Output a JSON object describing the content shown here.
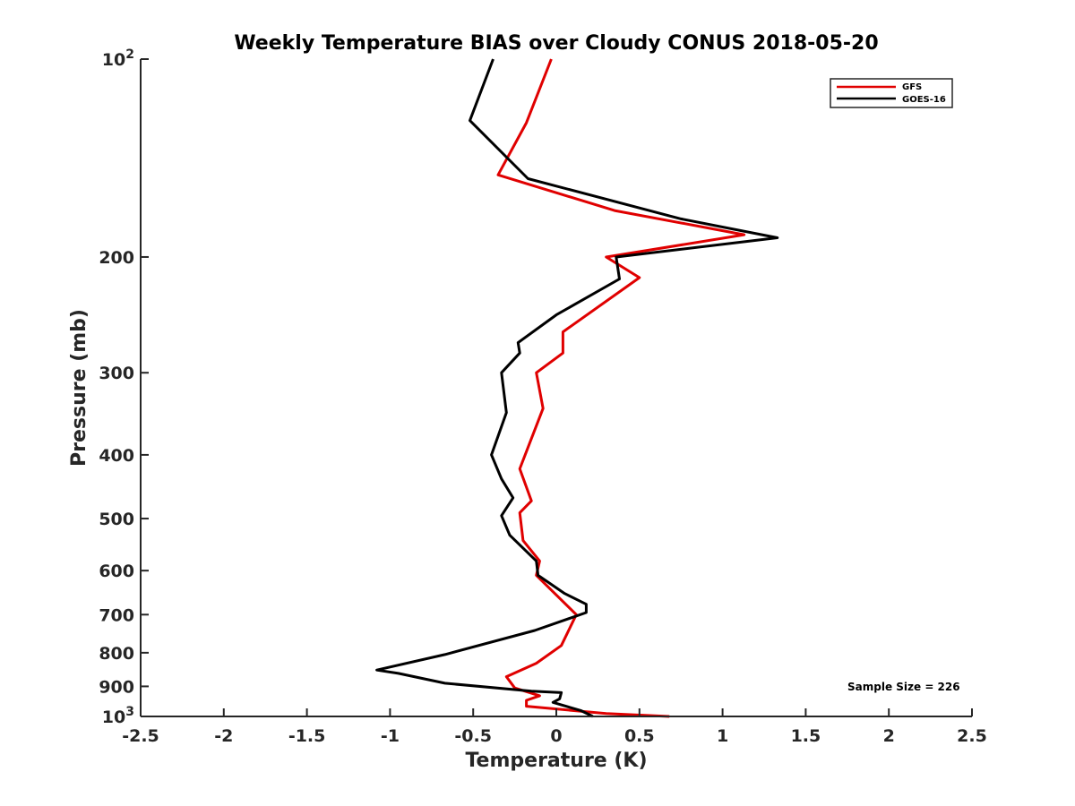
{
  "chart_data": {
    "type": "line",
    "title": "Weekly Temperature BIAS over Cloudy CONUS 2018-05-20",
    "xlabel": "Temperature (K)",
    "ylabel": "Pressure (mb)",
    "xlim": [
      -2.5,
      2.5
    ],
    "ylim": [
      100,
      1000
    ],
    "y_scale": "log",
    "y_reversed": true,
    "x_ticks": [
      -2.5,
      -2,
      -1.5,
      -1,
      -0.5,
      0,
      0.5,
      1,
      1.5,
      2,
      2.5
    ],
    "x_tick_labels": [
      "-2.5",
      "-2",
      "-1.5",
      "-1",
      "-0.5",
      "0",
      "0.5",
      "1",
      "1.5",
      "2",
      "2.5"
    ],
    "y_ticks": [
      100,
      200,
      300,
      400,
      500,
      600,
      700,
      800,
      900,
      1000
    ],
    "y_tick_labels": [
      {
        "base": "10",
        "exp": "2"
      },
      {
        "base": "200",
        "exp": ""
      },
      {
        "base": "300",
        "exp": ""
      },
      {
        "base": "400",
        "exp": ""
      },
      {
        "base": "500",
        "exp": ""
      },
      {
        "base": "600",
        "exp": ""
      },
      {
        "base": "700",
        "exp": ""
      },
      {
        "base": "800",
        "exp": ""
      },
      {
        "base": "900",
        "exp": ""
      },
      {
        "base": "10",
        "exp": "3"
      }
    ],
    "grid": false,
    "legend_position": "top-right",
    "annotation": "Sample Size = 226",
    "series": [
      {
        "name": "GFS",
        "color": "#e00000",
        "points": [
          {
            "x": -0.03,
            "p": 100
          },
          {
            "x": -0.18,
            "p": 125
          },
          {
            "x": -0.35,
            "p": 150
          },
          {
            "x": 0.35,
            "p": 170
          },
          {
            "x": 1.13,
            "p": 185
          },
          {
            "x": 0.3,
            "p": 200
          },
          {
            "x": 0.5,
            "p": 215
          },
          {
            "x": 0.04,
            "p": 260
          },
          {
            "x": 0.04,
            "p": 280
          },
          {
            "x": -0.12,
            "p": 300
          },
          {
            "x": -0.08,
            "p": 340
          },
          {
            "x": -0.22,
            "p": 420
          },
          {
            "x": -0.15,
            "p": 470
          },
          {
            "x": -0.22,
            "p": 490
          },
          {
            "x": -0.2,
            "p": 540
          },
          {
            "x": -0.1,
            "p": 580
          },
          {
            "x": -0.12,
            "p": 610
          },
          {
            "x": 0.12,
            "p": 700
          },
          {
            "x": 0.03,
            "p": 780
          },
          {
            "x": -0.12,
            "p": 830
          },
          {
            "x": -0.3,
            "p": 870
          },
          {
            "x": -0.25,
            "p": 905
          },
          {
            "x": -0.1,
            "p": 930
          },
          {
            "x": -0.18,
            "p": 945
          },
          {
            "x": -0.18,
            "p": 965
          },
          {
            "x": 0.3,
            "p": 990
          },
          {
            "x": 0.68,
            "p": 1000
          }
        ]
      },
      {
        "name": "GOES-16",
        "color": "#000000",
        "points": [
          {
            "x": -0.38,
            "p": 100
          },
          {
            "x": -0.52,
            "p": 124
          },
          {
            "x": -0.17,
            "p": 152
          },
          {
            "x": 0.75,
            "p": 175
          },
          {
            "x": 1.33,
            "p": 187
          },
          {
            "x": 0.36,
            "p": 200
          },
          {
            "x": 0.38,
            "p": 216
          },
          {
            "x": 0.0,
            "p": 245
          },
          {
            "x": -0.23,
            "p": 270
          },
          {
            "x": -0.22,
            "p": 280
          },
          {
            "x": -0.33,
            "p": 300
          },
          {
            "x": -0.3,
            "p": 345
          },
          {
            "x": -0.39,
            "p": 400
          },
          {
            "x": -0.33,
            "p": 435
          },
          {
            "x": -0.26,
            "p": 465
          },
          {
            "x": -0.33,
            "p": 495
          },
          {
            "x": -0.28,
            "p": 530
          },
          {
            "x": -0.12,
            "p": 580
          },
          {
            "x": -0.11,
            "p": 610
          },
          {
            "x": 0.05,
            "p": 650
          },
          {
            "x": 0.18,
            "p": 675
          },
          {
            "x": 0.18,
            "p": 695
          },
          {
            "x": -0.13,
            "p": 740
          },
          {
            "x": -0.67,
            "p": 805
          },
          {
            "x": -1.08,
            "p": 850
          },
          {
            "x": -0.95,
            "p": 860
          },
          {
            "x": -0.67,
            "p": 890
          },
          {
            "x": -0.15,
            "p": 915
          },
          {
            "x": 0.03,
            "p": 920
          },
          {
            "x": 0.02,
            "p": 940
          },
          {
            "x": -0.02,
            "p": 952
          },
          {
            "x": 0.15,
            "p": 980
          },
          {
            "x": 0.22,
            "p": 1000
          }
        ]
      }
    ]
  }
}
